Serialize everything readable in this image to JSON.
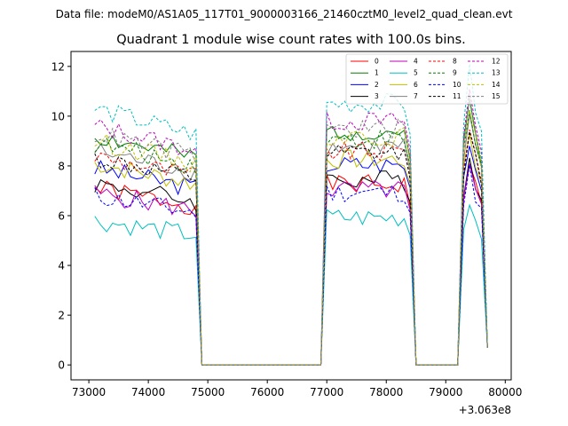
{
  "figure": {
    "suptitle": "Data file: modeM0/AS1A05_117T01_9000003166_21460cztM0_level2_quad_clean.evt"
  },
  "chart_data": {
    "type": "line",
    "title": "Quadrant 1 module wise count rates with 100.0s bins.",
    "xlabel": "",
    "ylabel": "",
    "x_offset_label": "+3.063e8",
    "xlim": [
      72700,
      80100
    ],
    "ylim": [
      -0.6,
      12.6
    ],
    "x_ticks": [
      73000,
      74000,
      75000,
      76000,
      77000,
      78000,
      79000,
      80000
    ],
    "x_tick_labels": [
      "73000",
      "74000",
      "75000",
      "76000",
      "77000",
      "78000",
      "79000",
      "80000"
    ],
    "y_ticks": [
      0,
      2,
      4,
      6,
      8,
      10,
      12
    ],
    "y_tick_labels": [
      "0",
      "2",
      "4",
      "6",
      "8",
      "10",
      "12"
    ],
    "grid": false,
    "legend_placement": "top-right",
    "legend_columns": 4,
    "series": [
      {
        "name": "0",
        "color": "#ff0000",
        "dash": "solid",
        "base": 7.1,
        "seed": 1
      },
      {
        "name": "1",
        "color": "#008000",
        "dash": "solid",
        "base": 9.2,
        "seed": 2
      },
      {
        "name": "2",
        "color": "#0000ff",
        "dash": "solid",
        "base": 7.9,
        "seed": 3
      },
      {
        "name": "3",
        "color": "#000000",
        "dash": "solid",
        "base": 7.3,
        "seed": 4
      },
      {
        "name": "4",
        "color": "#bf00bf",
        "dash": "solid",
        "base": 6.9,
        "seed": 5
      },
      {
        "name": "5",
        "color": "#00bfbf",
        "dash": "solid",
        "base": 5.8,
        "seed": 6
      },
      {
        "name": "6",
        "color": "#bfbf00",
        "dash": "solid",
        "base": 8.1,
        "seed": 7
      },
      {
        "name": "7",
        "color": "#808080",
        "dash": "solid",
        "base": 8.6,
        "seed": 8
      },
      {
        "name": "8",
        "color": "#ff0000",
        "dash": "dashed",
        "base": 8.4,
        "seed": 9
      },
      {
        "name": "9",
        "color": "#008000",
        "dash": "dashed",
        "base": 8.9,
        "seed": 10
      },
      {
        "name": "10",
        "color": "#0000ff",
        "dash": "dashed",
        "base": 6.8,
        "seed": 11
      },
      {
        "name": "11",
        "color": "#000000",
        "dash": "dashed",
        "base": 8.3,
        "seed": 12
      },
      {
        "name": "12",
        "color": "#bf00bf",
        "dash": "dashed",
        "base": 9.6,
        "seed": 13
      },
      {
        "name": "13",
        "color": "#00bfbf",
        "dash": "dashed",
        "base": 10.3,
        "seed": 14
      },
      {
        "name": "14",
        "color": "#bfbf00",
        "dash": "dashed",
        "base": 9.0,
        "seed": 15
      },
      {
        "name": "15",
        "color": "#808080",
        "dash": "dashed",
        "base": 9.3,
        "seed": 16
      }
    ],
    "time_start": 73100,
    "bin_width": 100,
    "active_ranges": [
      [
        73100,
        74800
      ],
      [
        77000,
        78300
      ],
      [
        79300,
        79600
      ]
    ],
    "zero_ranges": [
      [
        74900,
        76900
      ],
      [
        78500,
        79200
      ]
    ],
    "end_point": [
      79700,
      0.7
    ]
  }
}
